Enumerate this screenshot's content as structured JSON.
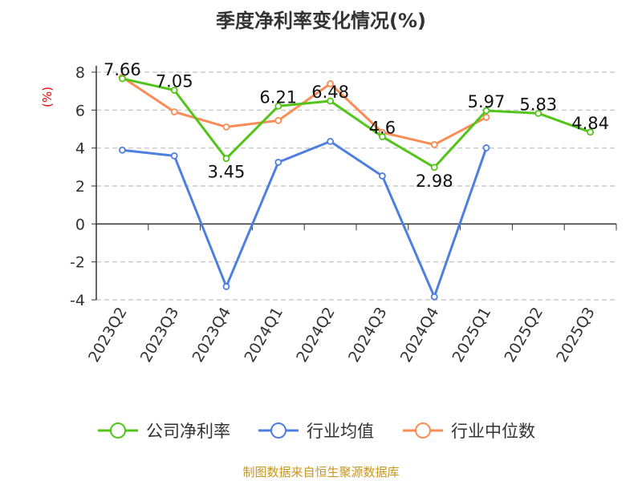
{
  "chart_data": {
    "type": "line",
    "title": "季度净利率变化情况(%)",
    "ylabel": "(%)",
    "categories": [
      "2023Q2",
      "2023Q3",
      "2023Q4",
      "2024Q1",
      "2024Q2",
      "2024Q3",
      "2024Q4",
      "2025Q1",
      "2025Q2",
      "2025Q3"
    ],
    "ylim": [
      -4,
      8
    ],
    "yticks": [
      -4,
      -2,
      0,
      2,
      4,
      6,
      8
    ],
    "grid": true,
    "legend_position": "bottom",
    "series": [
      {
        "name": "公司净利率",
        "color": "#52c41a",
        "labels": true,
        "values": [
          7.66,
          7.05,
          3.45,
          6.21,
          6.48,
          4.6,
          2.98,
          5.97,
          5.83,
          4.84
        ]
      },
      {
        "name": "行业均值",
        "color": "#4e7fe0",
        "labels": false,
        "values": [
          3.89,
          3.59,
          -3.3,
          3.25,
          4.35,
          2.53,
          -3.84,
          4.01,
          null,
          null
        ]
      },
      {
        "name": "行业中位数",
        "color": "#fb8c55",
        "labels": false,
        "values": [
          7.73,
          5.91,
          5.11,
          5.45,
          7.39,
          4.82,
          4.18,
          5.62,
          null,
          null
        ]
      }
    ]
  },
  "source": "制图数据来自恒生聚源数据库"
}
